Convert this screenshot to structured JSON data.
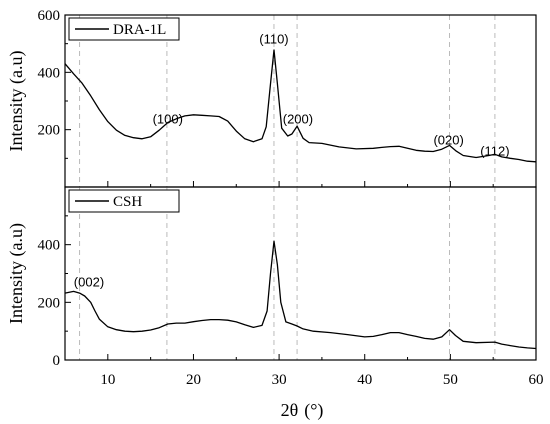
{
  "chart_data": {
    "type": "line",
    "xlabel_main": "2θ",
    "xlabel_unit": "(°)",
    "xlim": [
      5,
      60
    ],
    "xticks": [
      10,
      20,
      30,
      40,
      50,
      60
    ],
    "reference_lines_x": [
      6.7,
      16.9,
      29.4,
      32.1,
      49.9,
      55.2
    ],
    "line_color": "#000000",
    "reference_line_color": "#bbbbbb",
    "panels": [
      {
        "legend": "DRA-1L",
        "ylabel": "Intensity (a.u)",
        "ylim": [
          0,
          600
        ],
        "yticks": [
          200,
          400,
          600
        ],
        "annotations": [
          {
            "text": "(100)",
            "x": 17.0,
            "y": 222
          },
          {
            "text": "(110)",
            "x": 29.4,
            "y": 500
          },
          {
            "text": "(200)",
            "x": 32.2,
            "y": 222
          },
          {
            "text": "(020)",
            "x": 49.8,
            "y": 148
          },
          {
            "text": "(112)",
            "x": 55.2,
            "y": 110
          }
        ],
        "points": [
          [
            5,
            430
          ],
          [
            6,
            395
          ],
          [
            7,
            362
          ],
          [
            8,
            318
          ],
          [
            9,
            270
          ],
          [
            10,
            228
          ],
          [
            11,
            198
          ],
          [
            12,
            180
          ],
          [
            13,
            172
          ],
          [
            14,
            168
          ],
          [
            15,
            175
          ],
          [
            16,
            198
          ],
          [
            17,
            225
          ],
          [
            18,
            238
          ],
          [
            19,
            248
          ],
          [
            20,
            252
          ],
          [
            21,
            250
          ],
          [
            22,
            248
          ],
          [
            23,
            246
          ],
          [
            24,
            230
          ],
          [
            25,
            195
          ],
          [
            26,
            168
          ],
          [
            27,
            158
          ],
          [
            28,
            168
          ],
          [
            28.5,
            210
          ],
          [
            29,
            360
          ],
          [
            29.4,
            478
          ],
          [
            29.8,
            360
          ],
          [
            30.3,
            205
          ],
          [
            31,
            178
          ],
          [
            31.5,
            185
          ],
          [
            32.1,
            212
          ],
          [
            32.8,
            170
          ],
          [
            33.5,
            155
          ],
          [
            35,
            152
          ],
          [
            37,
            140
          ],
          [
            39,
            133
          ],
          [
            41,
            135
          ],
          [
            42,
            138
          ],
          [
            43,
            141
          ],
          [
            44,
            142
          ],
          [
            45,
            135
          ],
          [
            46,
            128
          ],
          [
            47,
            125
          ],
          [
            48,
            124
          ],
          [
            49,
            132
          ],
          [
            49.9,
            145
          ],
          [
            50.7,
            125
          ],
          [
            51.5,
            110
          ],
          [
            53,
            103
          ],
          [
            54.5,
            110
          ],
          [
            55.2,
            114
          ],
          [
            56,
            105
          ],
          [
            57,
            100
          ],
          [
            58,
            96
          ],
          [
            59,
            90
          ],
          [
            60,
            88
          ]
        ]
      },
      {
        "legend": "CSH",
        "ylabel": "Intensity (a.u)",
        "ylim": [
          0,
          600
        ],
        "yticks": [
          0,
          200,
          400
        ],
        "annotations": [
          {
            "text": "(002)",
            "x": 7.8,
            "y": 255
          }
        ],
        "points": [
          [
            5,
            232
          ],
          [
            6,
            238
          ],
          [
            6.7,
            232
          ],
          [
            7.3,
            222
          ],
          [
            8,
            200
          ],
          [
            8.5,
            170
          ],
          [
            9,
            142
          ],
          [
            10,
            115
          ],
          [
            11,
            105
          ],
          [
            12,
            100
          ],
          [
            13,
            98
          ],
          [
            14,
            100
          ],
          [
            15,
            104
          ],
          [
            16,
            112
          ],
          [
            17,
            125
          ],
          [
            18,
            128
          ],
          [
            19,
            128
          ],
          [
            20,
            133
          ],
          [
            21,
            137
          ],
          [
            22,
            140
          ],
          [
            23,
            140
          ],
          [
            24,
            138
          ],
          [
            25,
            132
          ],
          [
            26,
            122
          ],
          [
            27,
            113
          ],
          [
            28,
            120
          ],
          [
            28.6,
            170
          ],
          [
            29,
            300
          ],
          [
            29.4,
            412
          ],
          [
            29.8,
            330
          ],
          [
            30.2,
            200
          ],
          [
            30.8,
            132
          ],
          [
            31.5,
            125
          ],
          [
            32.1,
            118
          ],
          [
            32.8,
            108
          ],
          [
            34,
            100
          ],
          [
            36,
            95
          ],
          [
            38,
            88
          ],
          [
            40,
            80
          ],
          [
            41,
            82
          ],
          [
            42,
            88
          ],
          [
            43,
            95
          ],
          [
            44,
            95
          ],
          [
            45,
            88
          ],
          [
            46,
            82
          ],
          [
            47,
            75
          ],
          [
            48,
            72
          ],
          [
            49,
            80
          ],
          [
            49.9,
            105
          ],
          [
            50.6,
            85
          ],
          [
            51.5,
            65
          ],
          [
            53,
            60
          ],
          [
            55.2,
            62
          ],
          [
            56,
            55
          ],
          [
            57,
            50
          ],
          [
            58,
            45
          ],
          [
            59,
            42
          ],
          [
            60,
            40
          ]
        ]
      }
    ]
  }
}
